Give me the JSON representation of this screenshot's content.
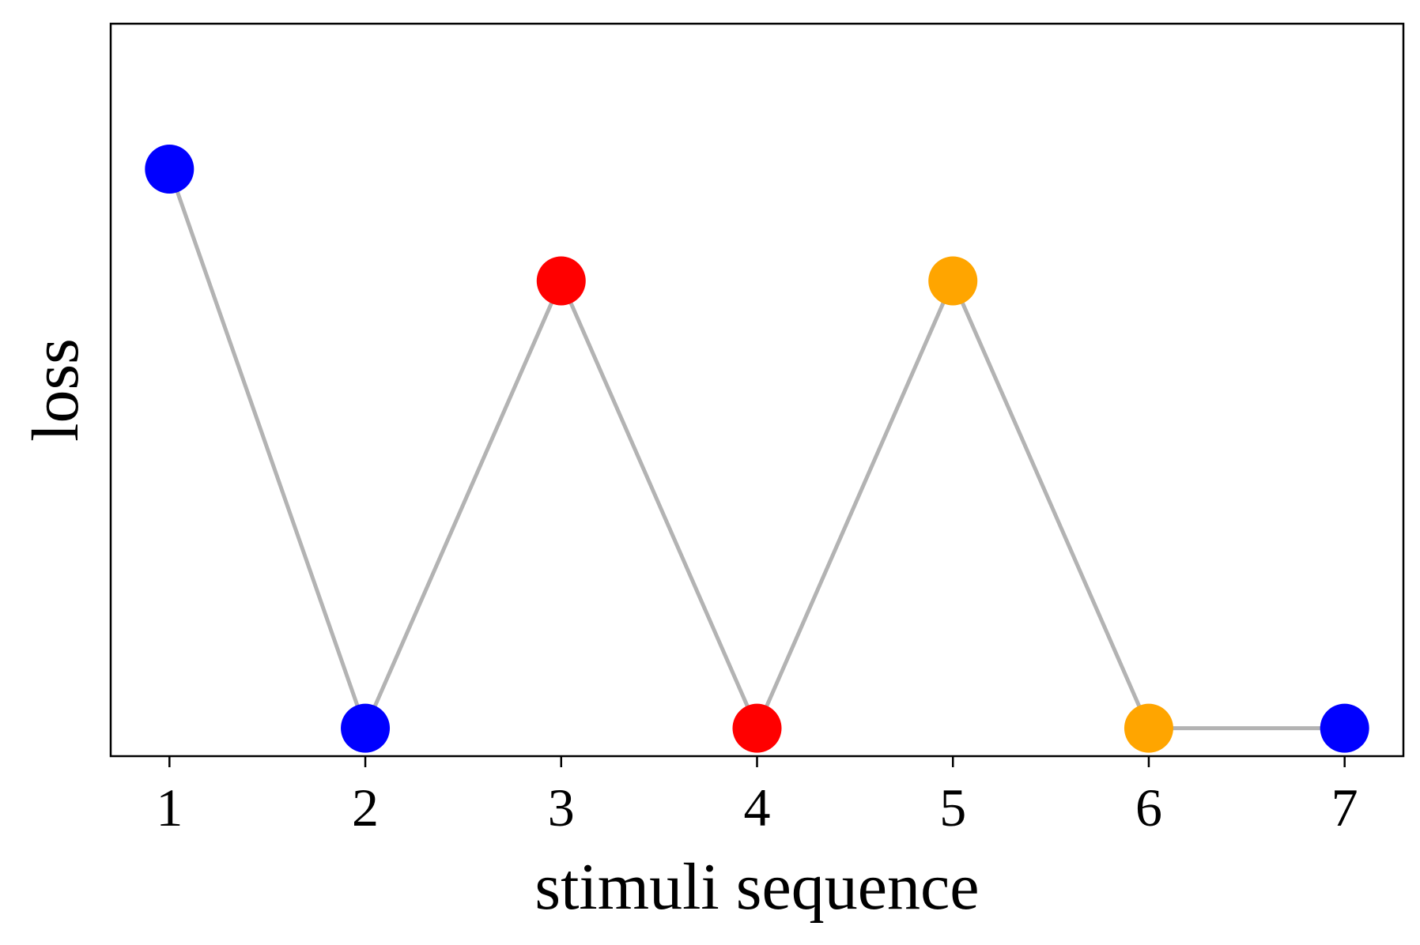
{
  "chart_data": {
    "type": "line",
    "title": "",
    "xlabel": "stimuli sequence",
    "ylabel": "loss",
    "x": [
      1,
      2,
      3,
      4,
      5,
      6,
      7
    ],
    "x_tick_labels": [
      "1",
      "2",
      "3",
      "4",
      "5",
      "6",
      "7"
    ],
    "y_ticks_shown": false,
    "values": [
      1.0,
      0.0,
      0.8,
      0.0,
      0.8,
      0.0,
      0.0
    ],
    "point_colors": [
      "#0000ff",
      "#0000ff",
      "#ff0000",
      "#ff0000",
      "#ffa500",
      "#ffa500",
      "#0000ff"
    ],
    "line_color": "#b3b3b3",
    "xlim": [
      0.7,
      7.3
    ],
    "ylim": [
      -0.05,
      1.26
    ],
    "grid": false,
    "legend": "none"
  }
}
